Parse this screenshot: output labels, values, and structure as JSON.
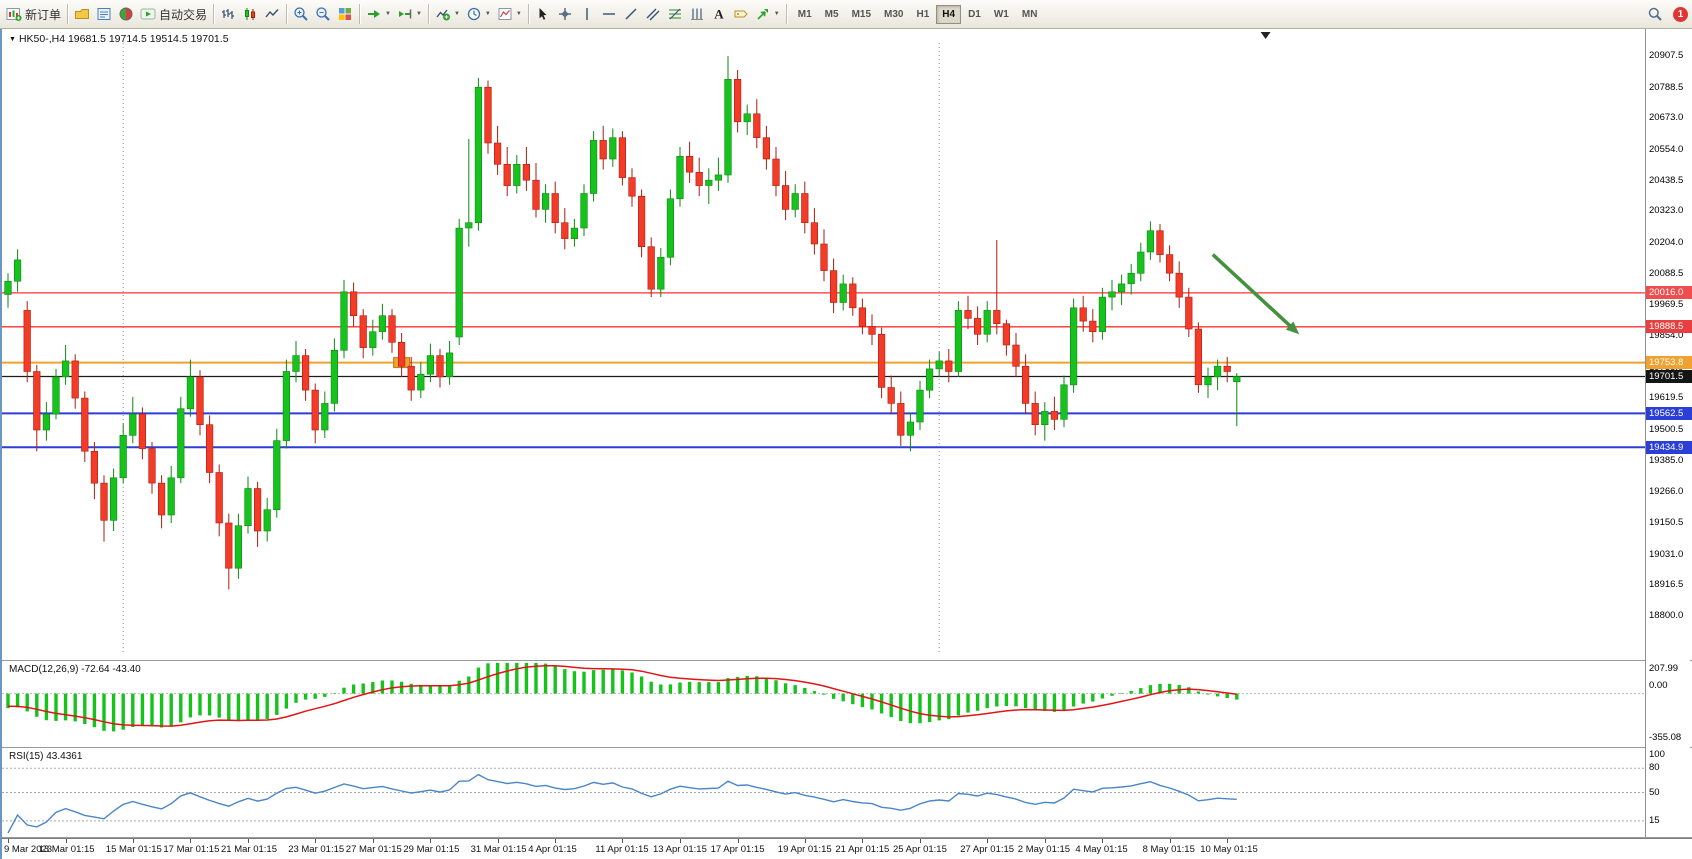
{
  "toolbar": {
    "new_order": "新订单",
    "autotrading": "自动交易",
    "timeframes": [
      "M1",
      "M5",
      "M15",
      "M30",
      "H1",
      "H4",
      "D1",
      "W1",
      "MN"
    ],
    "active_timeframe": "H4",
    "notification_count": "1",
    "icons": {
      "new_order": "candles-plus",
      "profiles": "folder-yellow",
      "data_window": "list-blue",
      "community": "globe-red-green",
      "autotrading": "play-green",
      "chart_bars": "ohlc-bars",
      "chart_candles": "candles",
      "chart_line": "zigzag-line",
      "zoom_in": "magnifier-plus",
      "zoom_out": "magnifier-minus",
      "tile_windows": "grid-2x2",
      "auto_scroll": "green-arrow-right",
      "chart_shift": "green-arrow-shift",
      "indicators": "chart-plus",
      "periods": "clock",
      "templates": "chart-page",
      "cursor": "pointer",
      "crosshair": "cross",
      "vertical_line": "vertical-stroke",
      "horizontal_line": "horizontal-stroke",
      "trendline": "diagonal-stroke",
      "channel": "parallel-strokes",
      "fibonacci": "fib-levels",
      "cycle_lines": "vertical-triple",
      "text": "letter-A",
      "text_label": "tag",
      "arrows_tool": "green-arrow-shape",
      "search": "magnifier",
      "notification": "red-badge"
    }
  },
  "chart": {
    "info": "HK50-,H4 19681.5 19714.5 19514.5 19701.5",
    "price_max": 20907.5,
    "price_min": 18800.0,
    "price_axis_ticks": [
      "20907.5",
      "20788.5",
      "20673.0",
      "20554.0",
      "20438.5",
      "20323.0",
      "20204.0",
      "20088.5",
      "19969.5",
      "19854.0",
      "19735.0",
      "19619.5",
      "19500.5",
      "19385.0",
      "19266.0",
      "19150.5",
      "19031.0",
      "18916.5",
      "18800.0"
    ],
    "colors": {
      "up": "#17c21e",
      "up_stroke": "#0b8a10",
      "down": "#f43b28",
      "down_stroke": "#aa1d0f",
      "arrow": "#44913f"
    },
    "hlines": [
      {
        "price": 20016.0,
        "label": "20016.0",
        "color": "#ff3030",
        "badge": "#ef4e4e",
        "width": 1.3
      },
      {
        "price": 19888.5,
        "label": "19888.5",
        "color": "#ff3030",
        "badge": "#e84040",
        "width": 1.3
      },
      {
        "price": 19753.8,
        "label": "19753.8",
        "color": "#efa22f",
        "badge": "#efa22f",
        "width": 2
      },
      {
        "price": 19701.5,
        "label": "19701.5",
        "color": "#1c1c1c",
        "badge": "#151515",
        "width": 1.2
      },
      {
        "price": 19562.5,
        "label": "19562.5",
        "color": "#2b3fd6",
        "badge": "#2b3fd6",
        "width": 2
      },
      {
        "price": 19434.9,
        "label": "19434.9",
        "color": "#2b3fd6",
        "badge": "#2b3fd6",
        "width": 2
      }
    ],
    "vlines_bars": [
      12,
      97
    ],
    "price_marker": {
      "bar": 41,
      "price": 19753.8
    },
    "shift_marker_bar": 131,
    "arrow": {
      "from_bar": 125.5,
      "from_price": 20160,
      "to_bar": 134.5,
      "to_price": 19860,
      "color": "#44913f"
    },
    "time_axis": [
      {
        "label": "9 Mar 2023",
        "bar": 0
      },
      {
        "label": "13 Mar 01:15",
        "bar": 6
      },
      {
        "label": "15 Mar 01:15",
        "bar": 13
      },
      {
        "label": "17 Mar 01:15",
        "bar": 19
      },
      {
        "label": "21 Mar 01:15",
        "bar": 25
      },
      {
        "label": "23 Mar 01:15",
        "bar": 32
      },
      {
        "label": "27 Mar 01:15",
        "bar": 38
      },
      {
        "label": "29 Mar 01:15",
        "bar": 44
      },
      {
        "label": "31 Mar 01:15",
        "bar": 51
      },
      {
        "label": "4 Apr 01:15",
        "bar": 57
      },
      {
        "label": "11 Apr 01:15",
        "bar": 64
      },
      {
        "label": "13 Apr 01:15",
        "bar": 70
      },
      {
        "label": "17 Apr 01:15",
        "bar": 76
      },
      {
        "label": "19 Apr 01:15",
        "bar": 83
      },
      {
        "label": "21 Apr 01:15",
        "bar": 89
      },
      {
        "label": "25 Apr 01:15",
        "bar": 95
      },
      {
        "label": "27 Apr 01:15",
        "bar": 102
      },
      {
        "label": "2 May 01:15",
        "bar": 108
      },
      {
        "label": "4 May 01:15",
        "bar": 114
      },
      {
        "label": "8 May 01:15",
        "bar": 121
      },
      {
        "label": "10 May 01:15",
        "bar": 127
      }
    ],
    "candles": [
      [
        20010,
        20090,
        19960,
        20060
      ],
      [
        20060,
        20180,
        20020,
        20140
      ],
      [
        19950,
        19985,
        19680,
        19720
      ],
      [
        19720,
        19745,
        19420,
        19500
      ],
      [
        19500,
        19605,
        19460,
        19560
      ],
      [
        19560,
        19730,
        19540,
        19700
      ],
      [
        19700,
        19820,
        19670,
        19760
      ],
      [
        19760,
        19785,
        19580,
        19620
      ],
      [
        19620,
        19645,
        19380,
        19420
      ],
      [
        19420,
        19455,
        19240,
        19300
      ],
      [
        19300,
        19330,
        19080,
        19160
      ],
      [
        19160,
        19355,
        19120,
        19320
      ],
      [
        19320,
        19525,
        19300,
        19480
      ],
      [
        19480,
        19625,
        19450,
        19560
      ],
      [
        19560,
        19585,
        19390,
        19430
      ],
      [
        19430,
        19455,
        19260,
        19300
      ],
      [
        19300,
        19330,
        19130,
        19180
      ],
      [
        19180,
        19365,
        19150,
        19320
      ],
      [
        19320,
        19625,
        19300,
        19580
      ],
      [
        19580,
        19765,
        19550,
        19700
      ],
      [
        19700,
        19725,
        19480,
        19520
      ],
      [
        19520,
        19555,
        19300,
        19340
      ],
      [
        19340,
        19370,
        19100,
        19150
      ],
      [
        19150,
        19185,
        18900,
        18980
      ],
      [
        18980,
        19185,
        18940,
        19140
      ],
      [
        19140,
        19325,
        19110,
        19280
      ],
      [
        19280,
        19305,
        19060,
        19120
      ],
      [
        19120,
        19245,
        19080,
        19200
      ],
      [
        19200,
        19505,
        19170,
        19460
      ],
      [
        19460,
        19765,
        19430,
        19720
      ],
      [
        19720,
        19835,
        19680,
        19780
      ],
      [
        19780,
        19805,
        19610,
        19650
      ],
      [
        19650,
        19675,
        19450,
        19500
      ],
      [
        19500,
        19645,
        19470,
        19600
      ],
      [
        19600,
        19845,
        19570,
        19800
      ],
      [
        19800,
        20065,
        19770,
        20020
      ],
      [
        20020,
        20055,
        19890,
        19930
      ],
      [
        19930,
        19955,
        19770,
        19810
      ],
      [
        19810,
        19915,
        19780,
        19870
      ],
      [
        19870,
        19975,
        19840,
        19930
      ],
      [
        19930,
        19955,
        19790,
        19830
      ],
      [
        19830,
        19865,
        19700,
        19740
      ],
      [
        19740,
        19775,
        19610,
        19650
      ],
      [
        19650,
        19755,
        19620,
        19710
      ],
      [
        19710,
        19825,
        19680,
        19780
      ],
      [
        19780,
        19805,
        19660,
        19700
      ],
      [
        19700,
        19835,
        19670,
        19790
      ],
      [
        19850,
        20295,
        19820,
        20260
      ],
      [
        20260,
        20595,
        20190,
        20280
      ],
      [
        20280,
        20825,
        20250,
        20790
      ],
      [
        20790,
        20815,
        20540,
        20580
      ],
      [
        20580,
        20645,
        20460,
        20500
      ],
      [
        20500,
        20565,
        20380,
        20420
      ],
      [
        20420,
        20535,
        20390,
        20500
      ],
      [
        20500,
        20565,
        20400,
        20440
      ],
      [
        20440,
        20505,
        20300,
        20330
      ],
      [
        20330,
        20425,
        20280,
        20390
      ],
      [
        20390,
        20435,
        20240,
        20280
      ],
      [
        20280,
        20335,
        20180,
        20220
      ],
      [
        20220,
        20295,
        20190,
        20260
      ],
      [
        20260,
        20425,
        20230,
        20390
      ],
      [
        20390,
        20625,
        20360,
        20590
      ],
      [
        20590,
        20645,
        20480,
        20520
      ],
      [
        20520,
        20635,
        20490,
        20600
      ],
      [
        20600,
        20625,
        20420,
        20450
      ],
      [
        20450,
        20485,
        20340,
        20380
      ],
      [
        20380,
        20405,
        20150,
        20190
      ],
      [
        20190,
        20225,
        20000,
        20030
      ],
      [
        20030,
        20185,
        20000,
        20150
      ],
      [
        20150,
        20405,
        20120,
        20370
      ],
      [
        20370,
        20565,
        20340,
        20530
      ],
      [
        20530,
        20585,
        20430,
        20470
      ],
      [
        20470,
        20525,
        20380,
        20420
      ],
      [
        20420,
        20485,
        20350,
        20440
      ],
      [
        20440,
        20525,
        20400,
        20460
      ],
      [
        20460,
        20907,
        20430,
        20820
      ],
      [
        20820,
        20855,
        20620,
        20660
      ],
      [
        20660,
        20725,
        20610,
        20690
      ],
      [
        20690,
        20745,
        20560,
        20600
      ],
      [
        20600,
        20645,
        20480,
        20520
      ],
      [
        20520,
        20565,
        20380,
        20420
      ],
      [
        20420,
        20475,
        20290,
        20330
      ],
      [
        20330,
        20425,
        20300,
        20390
      ],
      [
        20390,
        20435,
        20240,
        20280
      ],
      [
        20280,
        20335,
        20160,
        20200
      ],
      [
        20200,
        20255,
        20060,
        20100
      ],
      [
        20100,
        20145,
        19940,
        19980
      ],
      [
        19980,
        20085,
        19950,
        20050
      ],
      [
        20050,
        20075,
        19930,
        19960
      ],
      [
        19960,
        19995,
        19860,
        19890
      ],
      [
        19890,
        19935,
        19820,
        19860
      ],
      [
        19860,
        19885,
        19620,
        19660
      ],
      [
        19660,
        19705,
        19560,
        19600
      ],
      [
        19600,
        19645,
        19440,
        19480
      ],
      [
        19480,
        19565,
        19420,
        19530
      ],
      [
        19530,
        19685,
        19500,
        19650
      ],
      [
        19650,
        19765,
        19620,
        19730
      ],
      [
        19730,
        19795,
        19700,
        19760
      ],
      [
        19760,
        19805,
        19680,
        19720
      ],
      [
        19720,
        19985,
        19700,
        19950
      ],
      [
        19950,
        20005,
        19880,
        19920
      ],
      [
        19920,
        19965,
        19820,
        19860
      ],
      [
        19860,
        19985,
        19830,
        19950
      ],
      [
        19950,
        20215,
        19860,
        19900
      ],
      [
        19900,
        19915,
        19780,
        19820
      ],
      [
        19820,
        19865,
        19700,
        19740
      ],
      [
        19740,
        19785,
        19560,
        19600
      ],
      [
        19600,
        19645,
        19480,
        19520
      ],
      [
        19520,
        19605,
        19460,
        19570
      ],
      [
        19570,
        19625,
        19500,
        19540
      ],
      [
        19540,
        19705,
        19510,
        19670
      ],
      [
        19670,
        19995,
        19640,
        19960
      ],
      [
        19960,
        20005,
        19870,
        19910
      ],
      [
        19910,
        19955,
        19830,
        19870
      ],
      [
        19870,
        20035,
        19840,
        20000
      ],
      [
        20000,
        20065,
        19950,
        20020
      ],
      [
        20020,
        20085,
        19970,
        20050
      ],
      [
        20050,
        20125,
        20010,
        20090
      ],
      [
        20090,
        20205,
        20060,
        20170
      ],
      [
        20170,
        20285,
        20140,
        20250
      ],
      [
        20250,
        20275,
        20130,
        20160
      ],
      [
        20160,
        20195,
        20060,
        20090
      ],
      [
        20090,
        20135,
        19960,
        20000
      ],
      [
        20000,
        20035,
        19850,
        19880
      ],
      [
        19880,
        19905,
        19640,
        19670
      ],
      [
        19670,
        19735,
        19620,
        19700
      ],
      [
        19700,
        19765,
        19650,
        19740
      ],
      [
        19740,
        19775,
        19680,
        19720
      ],
      [
        19681.5,
        19714.5,
        19514.5,
        19701.5
      ]
    ]
  },
  "macd": {
    "label": "MACD(12,26,9) -72.64 -43.40",
    "fast": 12,
    "slow": 26,
    "signal": 9,
    "axis_ticks": [
      "207.99",
      "0.00",
      "-355.08"
    ],
    "range_max": 207.99,
    "range_min": -355.08,
    "hist_color": "#17c21e",
    "signal_color": "#e01616"
  },
  "rsi": {
    "label": "RSI(15) 43.4361",
    "period": 15,
    "axis_ticks": [
      "100",
      "80",
      "50",
      "15"
    ],
    "levels": [
      80,
      50,
      15
    ],
    "line_color": "#4a86c8"
  }
}
